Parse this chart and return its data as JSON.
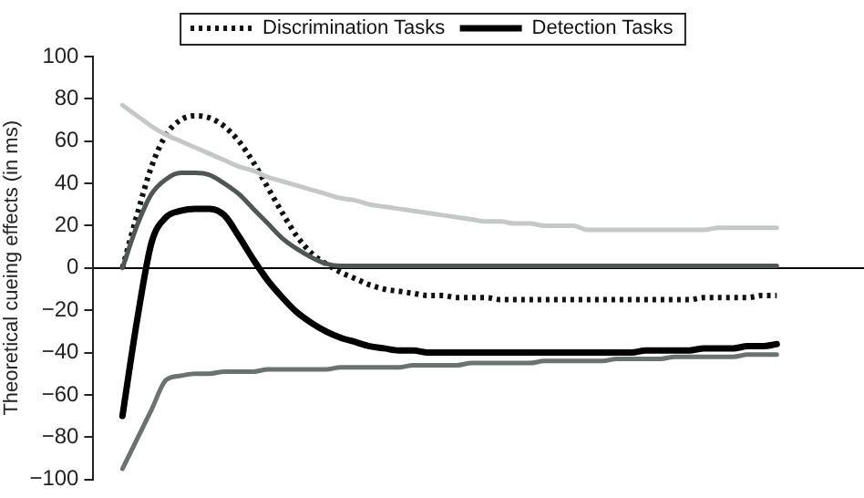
{
  "chart_data": {
    "type": "line",
    "ylabel": "Theoretical cueing effects (in ms)",
    "categories": [
      null,
      null,
      null,
      null,
      null,
      null,
      null,
      null,
      null,
      null,
      null,
      null,
      null,
      null,
      null,
      null,
      null,
      null,
      null,
      null,
      null,
      null,
      null,
      null,
      null,
      null,
      null,
      null,
      null,
      null,
      null,
      null,
      null,
      null,
      null,
      null,
      null,
      null,
      null,
      null,
      null,
      null,
      null,
      null,
      null,
      null,
      null,
      null,
      null,
      null,
      null,
      null,
      null,
      null
    ],
    "ylim": [
      -100,
      100
    ],
    "yticks": [
      -100,
      -80,
      -60,
      -40,
      -20,
      0,
      20,
      40,
      60,
      80,
      100
    ],
    "tick_labels": "y",
    "legend": "top",
    "marker": "none",
    "series": [
      {
        "color": "#c4c8c8",
        "values": [
          null,
          null,
          77,
          72,
          67,
          63,
          60,
          57,
          54,
          51,
          48,
          46,
          43,
          41,
          39,
          37,
          35,
          33,
          32,
          30,
          29,
          28,
          27,
          26,
          25,
          24,
          23,
          22,
          22,
          21,
          21,
          20,
          20,
          20,
          18,
          18,
          18,
          18,
          18,
          18,
          18,
          18,
          18,
          19,
          19,
          19,
          19,
          19,
          null,
          null,
          null,
          null,
          null,
          null
        ]
      },
      {
        "color": "#6a7272",
        "values": [
          null,
          null,
          -95,
          -81,
          -67,
          -53,
          -51,
          -50,
          -50,
          -49,
          -49,
          -49,
          -48,
          -48,
          -48,
          -48,
          -48,
          -47,
          -47,
          -47,
          -47,
          -47,
          -46,
          -46,
          -46,
          -46,
          -45,
          -45,
          -45,
          -45,
          -45,
          -44,
          -44,
          -44,
          -44,
          -44,
          -43,
          -43,
          -43,
          -43,
          -42,
          -42,
          -42,
          -42,
          -42,
          -41,
          -41,
          -41,
          null,
          null,
          null,
          null,
          null,
          null
        ]
      },
      {
        "color": "#505656",
        "values": [
          null,
          null,
          0,
          20,
          35,
          42,
          45,
          45,
          44,
          40,
          35,
          28,
          21,
          14,
          9,
          5,
          2,
          1,
          1,
          1,
          1,
          1,
          1,
          1,
          1,
          1,
          1,
          1,
          1,
          1,
          1,
          1,
          1,
          1,
          1,
          1,
          1,
          1,
          1,
          1,
          1,
          1,
          1,
          1,
          1,
          1,
          1,
          1,
          null,
          null,
          null,
          null,
          null,
          null
        ]
      },
      {
        "name": "Discrimination Tasks",
        "color": "#111111",
        "line_style": "dotted",
        "values": [
          null,
          null,
          0,
          25,
          48,
          63,
          70,
          72,
          71,
          67,
          60,
          50,
          38,
          26,
          15,
          7,
          2,
          -2,
          -5,
          -8,
          -10,
          -11,
          -12,
          -13,
          -13,
          -14,
          -14,
          -14,
          -15,
          -15,
          -15,
          -15,
          -15,
          -15,
          -15,
          -15,
          -15,
          -15,
          -15,
          -15,
          -15,
          -15,
          -14,
          -14,
          -14,
          -14,
          -13,
          -13,
          null,
          null,
          null,
          null,
          null,
          null
        ]
      },
      {
        "name": "Detection Tasks",
        "color": "#000000",
        "line_style": "solid",
        "values": [
          null,
          null,
          -70,
          -25,
          12,
          24,
          27,
          28,
          28,
          25,
          15,
          4,
          -6,
          -14,
          -21,
          -26,
          -30,
          -33,
          -35,
          -37,
          -38,
          -39,
          -39,
          -40,
          -40,
          -40,
          -40,
          -40,
          -40,
          -40,
          -40,
          -40,
          -40,
          -40,
          -40,
          -40,
          -40,
          -40,
          -39,
          -39,
          -39,
          -39,
          -38,
          -38,
          -38,
          -37,
          -37,
          -36,
          null,
          null,
          null,
          null,
          null,
          null
        ]
      }
    ]
  }
}
